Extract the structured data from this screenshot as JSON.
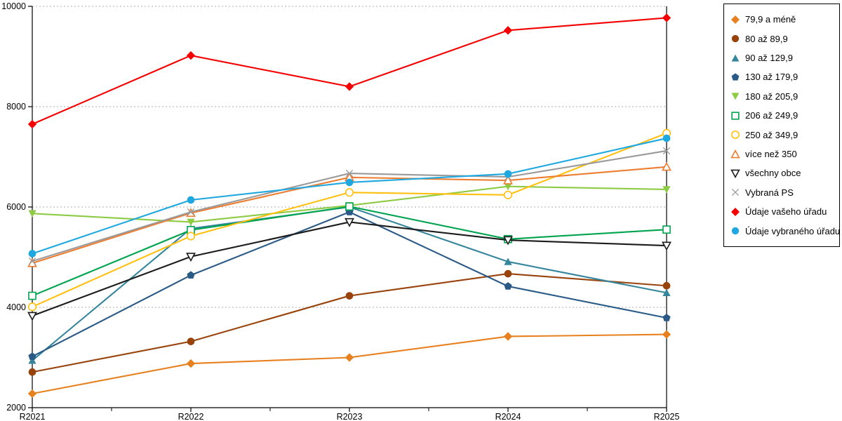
{
  "chart_data": {
    "type": "line",
    "title": "",
    "xlabel": "",
    "ylabel": "",
    "x_categories": [
      "R2021",
      "R2022",
      "R2023",
      "R2024",
      "R2025"
    ],
    "ylim": [
      2000,
      10000
    ],
    "yticks": [
      2000,
      4000,
      6000,
      8000,
      10000
    ],
    "grid": "horizontal-dashed",
    "gridline_color": "#ababab",
    "axis_color": "#000000",
    "legend_position": "right",
    "series": [
      {
        "name": "79,9 a méně",
        "marker": "diamond",
        "filled": true,
        "color": "#e8801f",
        "values": [
          2280,
          2880,
          3000,
          3420,
          3460
        ]
      },
      {
        "name": "80 až 89,9",
        "marker": "circle",
        "filled": true,
        "color": "#98430c",
        "values": [
          2710,
          3320,
          4230,
          4670,
          4430
        ]
      },
      {
        "name": "90 až 129,9",
        "marker": "triangle-up",
        "filled": true,
        "color": "#35869c",
        "values": [
          2940,
          5570,
          6000,
          4910,
          4290
        ]
      },
      {
        "name": "130 až 179,9",
        "marker": "pentagon",
        "filled": true,
        "color": "#2a5a85",
        "values": [
          3020,
          4640,
          5900,
          4420,
          3790
        ]
      },
      {
        "name": "180 až 205,9",
        "marker": "triangle-down",
        "filled": true,
        "color": "#8ecb45",
        "values": [
          5870,
          5700,
          6030,
          6410,
          6350
        ]
      },
      {
        "name": "206 až 249,9",
        "marker": "square",
        "filled": false,
        "color": "#00a44f",
        "values": [
          4230,
          5540,
          6010,
          5360,
          5550
        ]
      },
      {
        "name": "250 až 349,9",
        "marker": "circle",
        "filled": false,
        "color": "#ffc010",
        "values": [
          4010,
          5420,
          6290,
          6240,
          7470
        ]
      },
      {
        "name": "více než 350",
        "marker": "triangle-up",
        "filled": false,
        "color": "#ed7d31",
        "values": [
          4880,
          5880,
          6590,
          6530,
          6800
        ]
      },
      {
        "name": "všechny obce",
        "marker": "triangle-down",
        "filled": false,
        "color": "#1c1c1c",
        "values": [
          3830,
          5010,
          5700,
          5340,
          5230
        ]
      },
      {
        "name": "Vybraná PS",
        "marker": "x",
        "filled": false,
        "color": "#9a9a9a",
        "values": [
          4920,
          5900,
          6670,
          6600,
          7120
        ]
      },
      {
        "name": "Údaje vašeho úřadu",
        "marker": "diamond",
        "filled": true,
        "color": "#f40000",
        "values": [
          7650,
          9020,
          8400,
          9520,
          9770
        ]
      },
      {
        "name": "Údaje vybraného úřadu",
        "marker": "circle",
        "filled": true,
        "color": "#1fa8e0",
        "values": [
          5070,
          6140,
          6490,
          6660,
          7370
        ]
      }
    ]
  }
}
